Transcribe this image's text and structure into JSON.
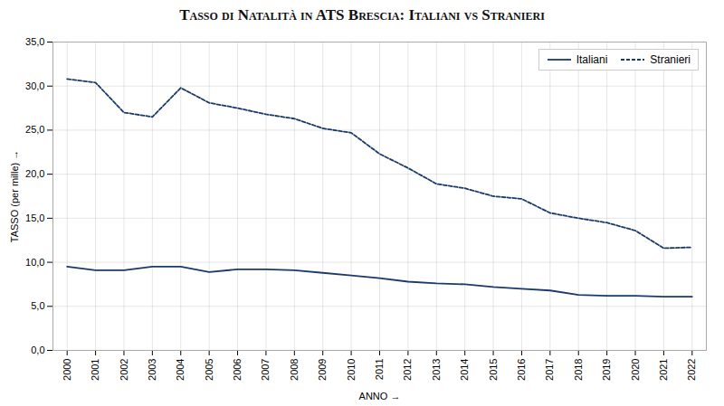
{
  "chart_data": {
    "type": "line",
    "title": "Tasso di Natalità in ATS Brescia: Italiani vs Stranieri",
    "xlabel": "ANNO",
    "ylabel": "TASSO (per mille)",
    "x": [
      2000,
      2001,
      2002,
      2003,
      2004,
      2005,
      2006,
      2007,
      2008,
      2009,
      2010,
      2011,
      2012,
      2013,
      2014,
      2015,
      2016,
      2017,
      2018,
      2019,
      2020,
      2021,
      2022
    ],
    "series": [
      {
        "name": "Italiani",
        "color": "#1a3a6b",
        "line_style": "solid",
        "values": [
          9.5,
          9.1,
          9.1,
          9.5,
          9.5,
          8.9,
          9.2,
          9.2,
          9.1,
          8.8,
          8.5,
          8.2,
          7.8,
          7.6,
          7.5,
          7.2,
          7.0,
          6.8,
          6.3,
          6.2,
          6.2,
          6.1,
          6.1
        ]
      },
      {
        "name": "Stranieri",
        "color": "#1a3a6b",
        "line_style": "dashed",
        "values": [
          30.8,
          30.4,
          27.0,
          26.5,
          29.8,
          28.1,
          27.5,
          26.8,
          26.3,
          25.2,
          24.7,
          22.3,
          20.7,
          18.9,
          18.4,
          17.5,
          17.2,
          15.6,
          15.0,
          14.5,
          13.6,
          11.6,
          11.7
        ]
      }
    ],
    "xlim": [
      1999.5,
      2022.5
    ],
    "xticks": [
      2000,
      2001,
      2002,
      2003,
      2004,
      2005,
      2006,
      2007,
      2008,
      2009,
      2010,
      2011,
      2012,
      2013,
      2014,
      2015,
      2016,
      2017,
      2018,
      2019,
      2020,
      2021,
      2022
    ],
    "ylim": [
      0,
      35
    ],
    "yticks": [
      {
        "value": 0,
        "label": "0,0"
      },
      {
        "value": 5,
        "label": "5,0"
      },
      {
        "value": 10,
        "label": "10,0"
      },
      {
        "value": 15,
        "label": "15,0"
      },
      {
        "value": 20,
        "label": "20,0"
      },
      {
        "value": 25,
        "label": "25,0"
      },
      {
        "value": 30,
        "label": "30,0"
      },
      {
        "value": 35,
        "label": "35,0"
      }
    ],
    "grid": true,
    "legend": "upper right"
  }
}
